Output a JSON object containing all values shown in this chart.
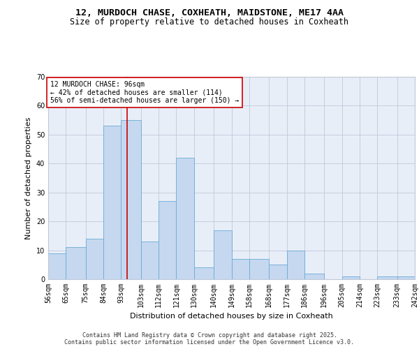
{
  "title_line1": "12, MURDOCH CHASE, COXHEATH, MAIDSTONE, ME17 4AA",
  "title_line2": "Size of property relative to detached houses in Coxheath",
  "xlabel": "Distribution of detached houses by size in Coxheath",
  "ylabel": "Number of detached properties",
  "bar_values": [
    9,
    11,
    14,
    53,
    55,
    13,
    27,
    42,
    4,
    17,
    7,
    7,
    5,
    10,
    2,
    0,
    1,
    0,
    1,
    1
  ],
  "bin_edges": [
    56,
    65,
    75,
    84,
    93,
    103,
    112,
    121,
    130,
    140,
    149,
    158,
    168,
    177,
    186,
    196,
    205,
    214,
    223,
    233,
    242
  ],
  "tick_labels": [
    "56sqm",
    "65sqm",
    "75sqm",
    "84sqm",
    "93sqm",
    "103sqm",
    "112sqm",
    "121sqm",
    "130sqm",
    "140sqm",
    "149sqm",
    "158sqm",
    "168sqm",
    "177sqm",
    "186sqm",
    "196sqm",
    "205sqm",
    "214sqm",
    "223sqm",
    "233sqm",
    "242sqm"
  ],
  "bar_color": "#c5d8f0",
  "bar_edge_color": "#6aaad4",
  "vline_x": 96,
  "vline_color": "#cc0000",
  "annotation_text": "12 MURDOCH CHASE: 96sqm\n← 42% of detached houses are smaller (114)\n56% of semi-detached houses are larger (150) →",
  "annotation_box_color": "#ffffff",
  "annotation_box_edge": "#cc0000",
  "ylim": [
    0,
    70
  ],
  "yticks": [
    0,
    10,
    20,
    30,
    40,
    50,
    60,
    70
  ],
  "grid_color": "#c0c8d8",
  "background_color": "#e8eef8",
  "footer_text": "Contains HM Land Registry data © Crown copyright and database right 2025.\nContains public sector information licensed under the Open Government Licence v3.0.",
  "title_fontsize": 9.5,
  "subtitle_fontsize": 8.5,
  "axis_label_fontsize": 8,
  "tick_fontsize": 7,
  "annotation_fontsize": 7,
  "footer_fontsize": 6
}
